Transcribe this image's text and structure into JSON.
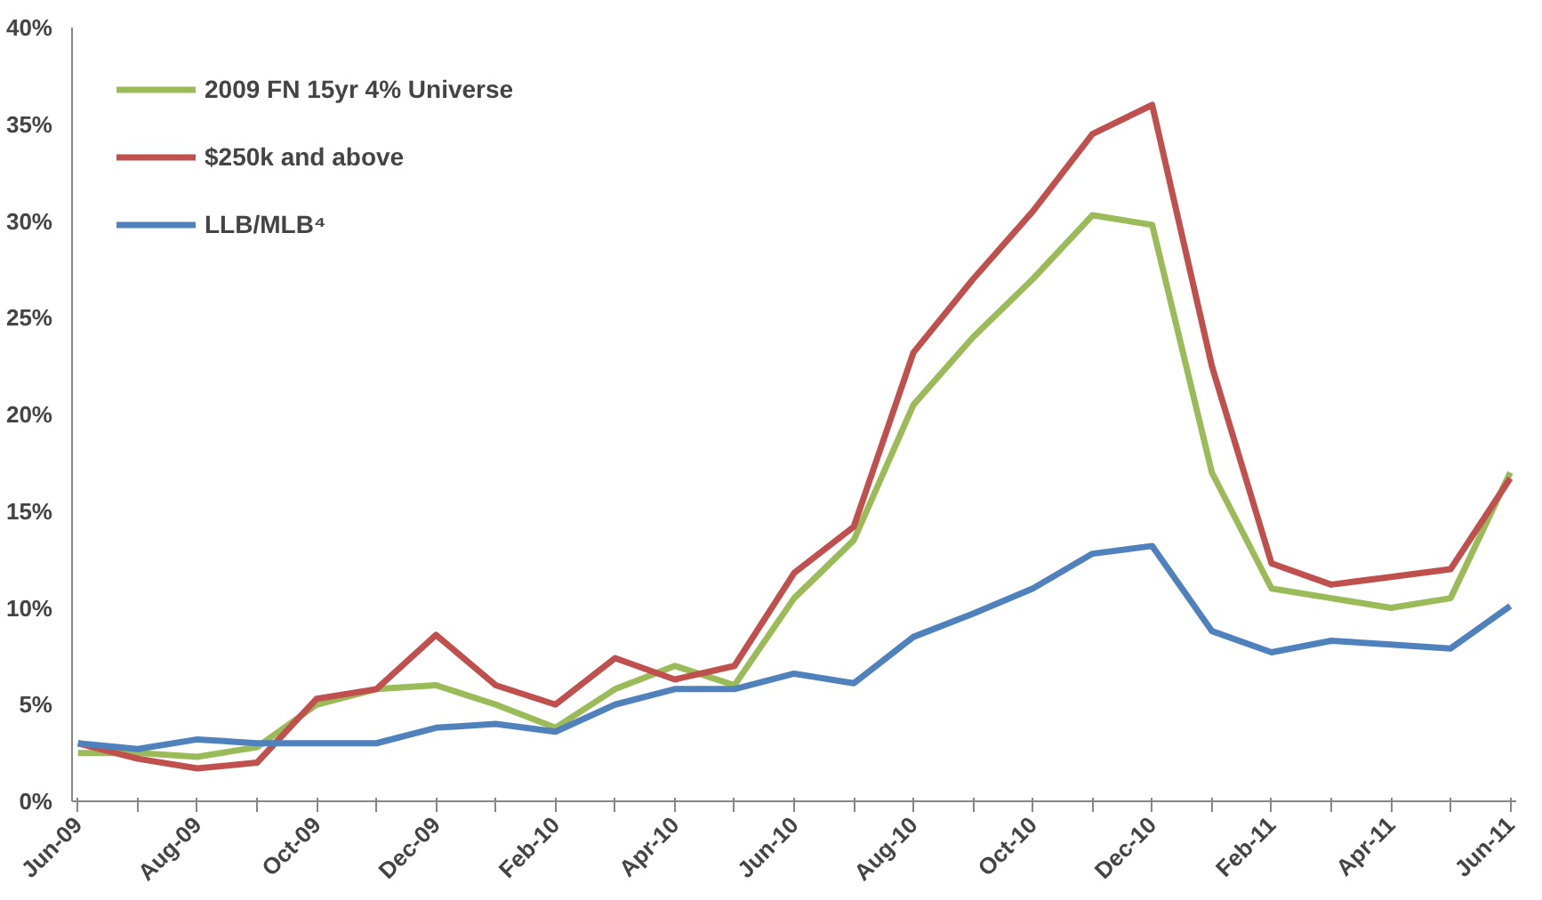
{
  "chart_data": {
    "type": "line",
    "categories": [
      "Jun-09",
      null,
      "Aug-09",
      null,
      "Oct-09",
      null,
      "Dec-09",
      null,
      "Feb-10",
      null,
      "Apr-10",
      null,
      "Jun-10",
      null,
      "Aug-10",
      null,
      "Oct-10",
      null,
      "Dec-10",
      null,
      "Feb-11",
      null,
      "Apr-11",
      null,
      "Jun-11"
    ],
    "series": [
      {
        "name": "2009 FN 15yr 4% Universe",
        "color": "#9bbb59",
        "values": [
          2.5,
          2.5,
          2.3,
          2.8,
          5.0,
          5.8,
          6.0,
          5.0,
          3.8,
          5.8,
          7.0,
          6.0,
          10.5,
          13.5,
          20.5,
          24.0,
          27.0,
          30.3,
          29.8,
          17.0,
          11.0,
          10.5,
          10.0,
          10.5,
          17.0
        ]
      },
      {
        "name": "$250k and above",
        "color": "#c0504d",
        "values": [
          3.0,
          2.2,
          1.7,
          2.0,
          5.3,
          5.8,
          8.6,
          6.0,
          5.0,
          7.4,
          6.3,
          7.0,
          11.8,
          14.2,
          23.2,
          27.0,
          30.5,
          34.5,
          36.0,
          22.5,
          12.3,
          11.2,
          11.6,
          12.0,
          16.7
        ]
      },
      {
        "name": "LLB/MLB⁴",
        "color": "#4f81bd",
        "values": [
          3.0,
          2.7,
          3.2,
          3.0,
          3.0,
          3.0,
          3.8,
          4.0,
          3.6,
          5.0,
          5.8,
          5.8,
          6.6,
          6.1,
          8.5,
          9.7,
          11.0,
          12.8,
          13.2,
          8.8,
          7.7,
          8.3,
          8.1,
          7.9,
          10.1
        ]
      }
    ],
    "ylim": [
      0,
      40
    ],
    "yticks": [
      {
        "value": 0,
        "label": "0%"
      },
      {
        "value": 5,
        "label": "5%"
      },
      {
        "value": 10,
        "label": "10%"
      },
      {
        "value": 15,
        "label": "15%"
      },
      {
        "value": 20,
        "label": "20%"
      },
      {
        "value": 25,
        "label": "25%"
      },
      {
        "value": 30,
        "label": "30%"
      },
      {
        "value": 35,
        "label": "35%"
      },
      {
        "value": 40,
        "label": "40%"
      }
    ],
    "grid": false,
    "legend": "top left",
    "line_style": "solid",
    "marker": "none"
  }
}
